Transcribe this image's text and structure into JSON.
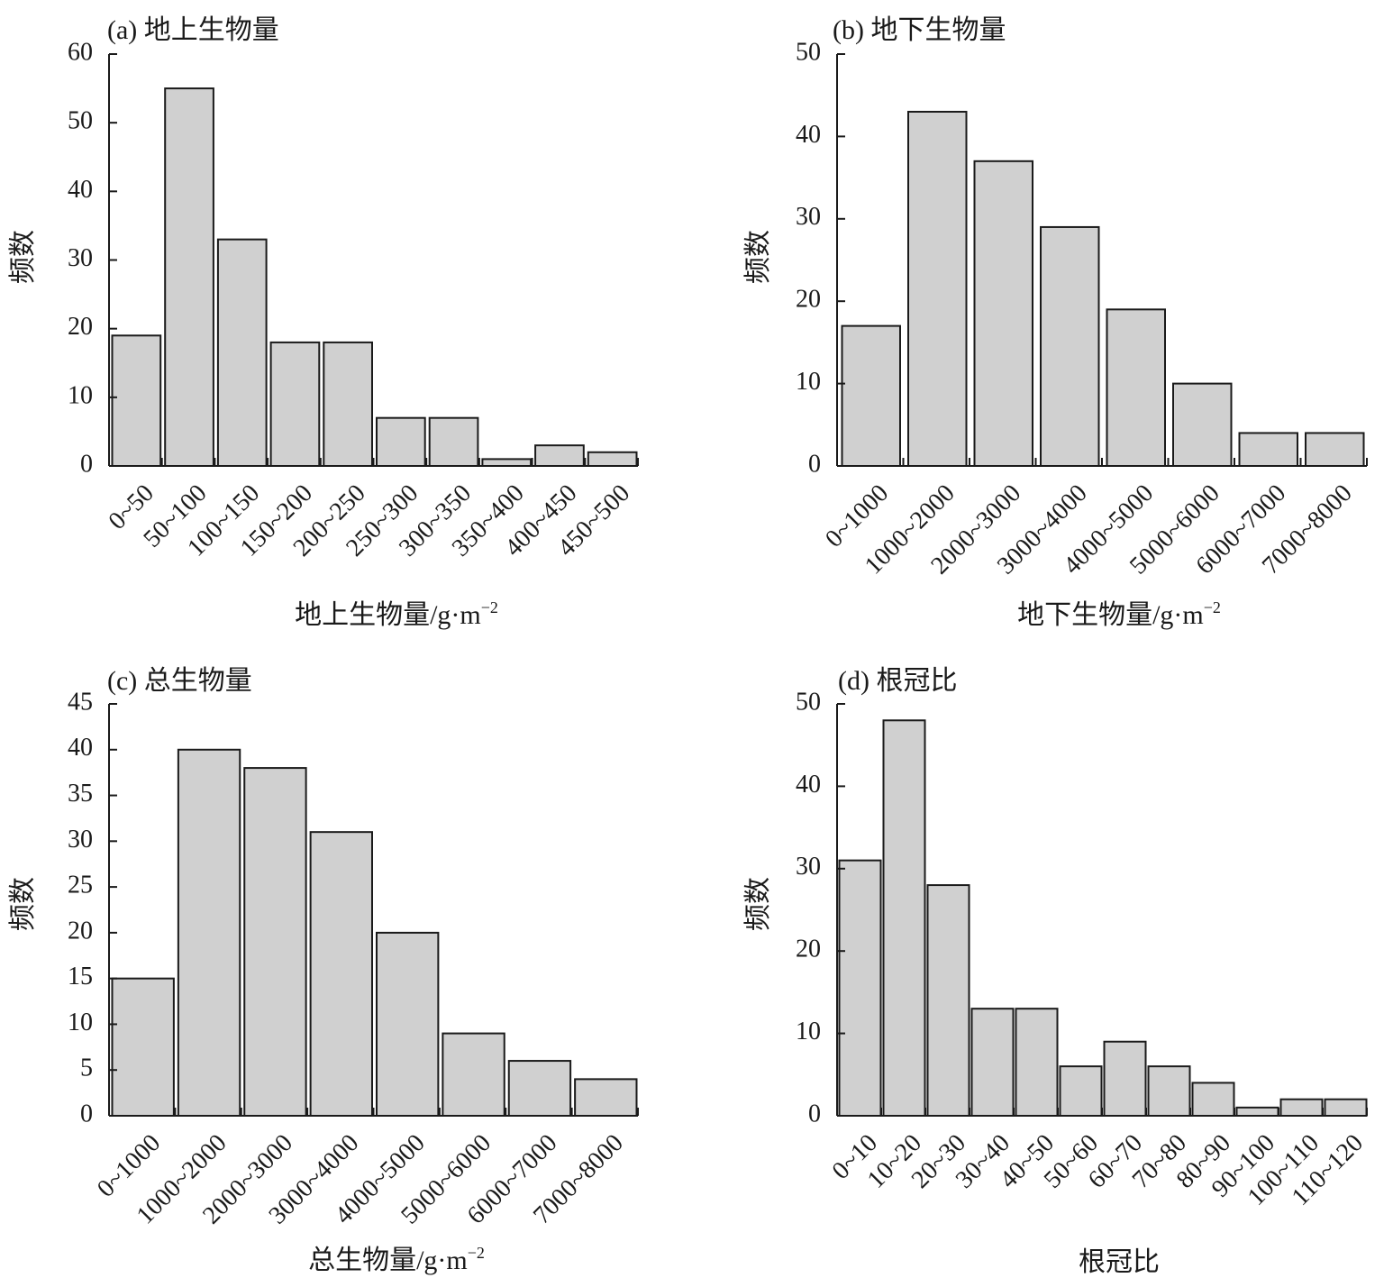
{
  "chart_data": [
    {
      "type": "bar",
      "title": "(a) 地上生物量",
      "xlabel": "地上生物量/g·m",
      "xlabel_sup": "−2",
      "ylabel": "频数",
      "categories": [
        "0~50",
        "50~100",
        "100~150",
        "150~200",
        "200~250",
        "250~300",
        "300~350",
        "350~400",
        "400~450",
        "450~500"
      ],
      "values": [
        19,
        55,
        33,
        18,
        18,
        7,
        7,
        1,
        3,
        2
      ],
      "ylim": [
        0,
        60
      ],
      "yticks": [
        0,
        10,
        20,
        30,
        40,
        50,
        60
      ],
      "grid": false
    },
    {
      "type": "bar",
      "title": "(b) 地下生物量",
      "xlabel": "地下生物量/g·m",
      "xlabel_sup": "−2",
      "ylabel": "频数",
      "categories": [
        "0~1000",
        "1000~2000",
        "2000~3000",
        "3000~4000",
        "4000~5000",
        "5000~6000",
        "6000~7000",
        "7000~8000"
      ],
      "values": [
        17,
        43,
        37,
        29,
        19,
        10,
        4,
        4
      ],
      "ylim": [
        0,
        50
      ],
      "yticks": [
        0,
        10,
        20,
        30,
        40,
        50
      ],
      "grid": false
    },
    {
      "type": "bar",
      "title": "(c) 总生物量",
      "xlabel": "总生物量/g·m",
      "xlabel_sup": "−2",
      "ylabel": "频数",
      "categories": [
        "0~1000",
        "1000~2000",
        "2000~3000",
        "3000~4000",
        "4000~5000",
        "5000~6000",
        "6000~7000",
        "7000~8000"
      ],
      "values": [
        15,
        40,
        38,
        31,
        20,
        9,
        6,
        4
      ],
      "ylim": [
        0,
        45
      ],
      "yticks": [
        0,
        5,
        10,
        15,
        20,
        25,
        30,
        35,
        40,
        45
      ],
      "grid": false
    },
    {
      "type": "bar",
      "title": "(d) 根冠比",
      "xlabel": "根冠比",
      "xlabel_sup": "",
      "ylabel": "频数",
      "categories": [
        "0~10",
        "10~20",
        "20~30",
        "30~40",
        "40~50",
        "50~60",
        "60~70",
        "70~80",
        "80~90",
        "90~100",
        "100~110",
        "110~120"
      ],
      "values": [
        31,
        48,
        28,
        13,
        13,
        6,
        9,
        6,
        4,
        1,
        2,
        2
      ],
      "ylim": [
        0,
        50
      ],
      "yticks": [
        0,
        10,
        20,
        30,
        40,
        50
      ],
      "grid": false
    }
  ]
}
